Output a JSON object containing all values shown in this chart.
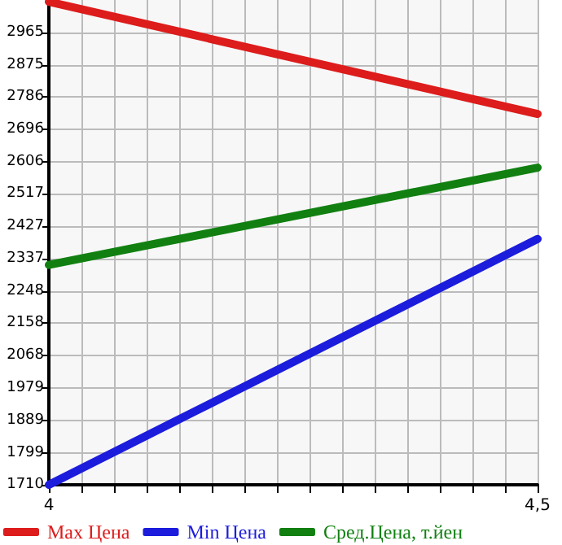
{
  "chart_data": {
    "type": "line",
    "x": [
      4,
      4.5
    ],
    "series": [
      {
        "name": "Max Цена",
        "color": "#dd1c1c",
        "values": [
          3050,
          2739
        ]
      },
      {
        "name": "Min Цена",
        "color": "#1c1cdd",
        "values": [
          1710,
          2392
        ]
      },
      {
        "name": "Сред.Цена, т.йен",
        "color": "#118011",
        "values": [
          2320,
          2590
        ]
      }
    ],
    "xlim": [
      4,
      4.5
    ],
    "xticks": [
      4,
      {
        "value": 4.0333,
        "label": null
      },
      {
        "value": 4.0667,
        "label": null
      },
      {
        "value": 4.1,
        "label": null
      },
      {
        "value": 4.1333,
        "label": null
      },
      {
        "value": 4.1667,
        "label": null
      },
      {
        "value": 4.2,
        "label": null
      },
      {
        "value": 4.2333,
        "label": null
      },
      {
        "value": 4.2667,
        "label": null
      },
      {
        "value": 4.3,
        "label": null
      },
      {
        "value": 4.3333,
        "label": null
      },
      {
        "value": 4.3667,
        "label": null
      },
      {
        "value": 4.4,
        "label": null
      },
      {
        "value": 4.4333,
        "label": null
      },
      {
        "value": 4.4667,
        "label": null
      },
      {
        "value": 4.5,
        "label": "4,5"
      }
    ],
    "ylim": [
      1710,
      3055
    ],
    "yticks": [
      1710,
      1799,
      1889,
      1979,
      2068,
      2158,
      2248,
      2337,
      2427,
      2517,
      2606,
      2696,
      2786,
      2875,
      2965
    ],
    "grid": true,
    "legend": "bottom",
    "marker": "none",
    "line_style": "solid"
  }
}
